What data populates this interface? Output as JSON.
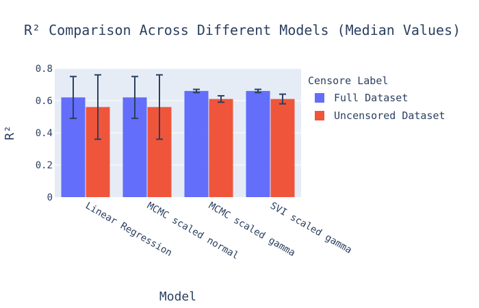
{
  "chart_data": {
    "type": "bar",
    "title": "R² Comparison Across Different Models (Median Values)",
    "xlabel": "Model",
    "ylabel": "R²",
    "ylim": [
      0,
      0.8
    ],
    "yticks": [
      0,
      0.2,
      0.4,
      0.6,
      0.8
    ],
    "ytick_labels": [
      "0",
      "0.2",
      "0.4",
      "0.6",
      "0.8"
    ],
    "categories": [
      "Linear Regression",
      "MCMC scaled normal",
      "MCMC scaled gamma",
      "SVI scaled gamma"
    ],
    "legend_title": "Censore Label",
    "legend_position": "right",
    "grid": true,
    "series": [
      {
        "name": "Full Dataset",
        "color": "#636efa",
        "values": [
          0.62,
          0.62,
          0.66,
          0.66
        ],
        "error_low": [
          0.49,
          0.49,
          0.65,
          0.65
        ],
        "error_high": [
          0.75,
          0.75,
          0.67,
          0.67
        ]
      },
      {
        "name": "Uncensored Dataset",
        "color": "#ef553b",
        "values": [
          0.56,
          0.56,
          0.61,
          0.61
        ],
        "error_low": [
          0.36,
          0.36,
          0.59,
          0.58
        ],
        "error_high": [
          0.76,
          0.76,
          0.63,
          0.64
        ]
      }
    ]
  }
}
